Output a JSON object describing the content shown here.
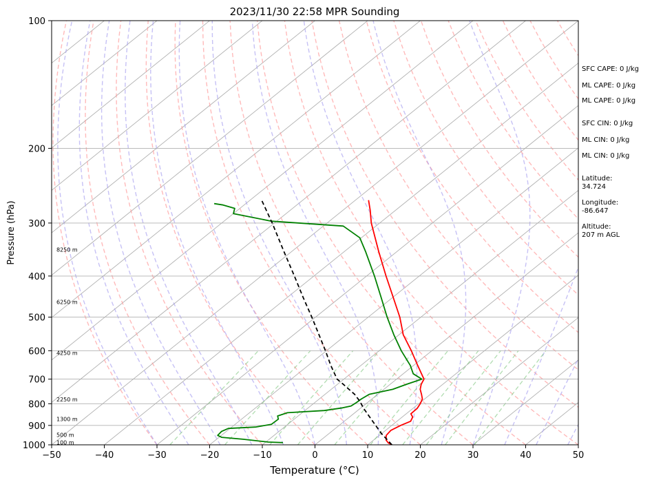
{
  "chart_data": {
    "type": "line",
    "title": "2023/11/30 22:58 MPR Sounding",
    "xlabel": "Temperature (°C)",
    "ylabel": "Pressure (hPa)",
    "x_scale": "linear",
    "y_scale": "log (inverted)",
    "xlim": [
      -50,
      50
    ],
    "ylim": [
      1000,
      100
    ],
    "x_ticks": [
      "−50",
      "−40",
      "−30",
      "−20",
      "−10",
      "0",
      "10",
      "20",
      "30",
      "40",
      "50"
    ],
    "x_tick_values": [
      -50,
      -40,
      -30,
      -20,
      -10,
      0,
      10,
      20,
      30,
      40,
      50
    ],
    "y_ticks": [
      "100",
      "200",
      "300",
      "400",
      "500",
      "600",
      "700",
      "800",
      "900",
      "1000"
    ],
    "y_tick_values": [
      100,
      200,
      300,
      400,
      500,
      600,
      700,
      800,
      900,
      1000
    ],
    "grid": true,
    "height_labels": [
      {
        "label": "100 m",
        "p": 991
      },
      {
        "label": "500 m",
        "p": 950
      },
      {
        "label": "1300 m",
        "p": 872
      },
      {
        "label": "2250 m",
        "p": 784
      },
      {
        "label": "4250 m",
        "p": 609
      },
      {
        "label": "6250 m",
        "p": 462
      },
      {
        "label": "8250 m",
        "p": 348
      }
    ],
    "series": [
      {
        "color": "#ff0000",
        "points": [
          {
            "p": 1000,
            "t": 14.6
          },
          {
            "p": 990,
            "t": 13.5
          },
          {
            "p": 975,
            "t": 12.4
          },
          {
            "p": 950,
            "t": 11.3
          },
          {
            "p": 925,
            "t": 11.0
          },
          {
            "p": 900,
            "t": 11.7
          },
          {
            "p": 880,
            "t": 12.6
          },
          {
            "p": 860,
            "t": 12.0
          },
          {
            "p": 845,
            "t": 10.9
          },
          {
            "p": 820,
            "t": 10.8
          },
          {
            "p": 800,
            "t": 10.3
          },
          {
            "p": 780,
            "t": 9.6
          },
          {
            "p": 760,
            "t": 8.3
          },
          {
            "p": 740,
            "t": 6.9
          },
          {
            "p": 720,
            "t": 5.9
          },
          {
            "p": 700,
            "t": 5.2
          },
          {
            "p": 650,
            "t": 0.8
          },
          {
            "p": 600,
            "t": -3.9
          },
          {
            "p": 550,
            "t": -9.2
          },
          {
            "p": 500,
            "t": -14.0
          },
          {
            "p": 450,
            "t": -19.8
          },
          {
            "p": 400,
            "t": -26.3
          },
          {
            "p": 350,
            "t": -33.5
          },
          {
            "p": 300,
            "t": -41.6
          },
          {
            "p": 280,
            "t": -44.8
          },
          {
            "p": 265,
            "t": -47.5
          }
        ]
      },
      {
        "color": "#008000",
        "points": [
          {
            "p": 988,
            "t": -6.6
          },
          {
            "p": 985,
            "t": -9.5
          },
          {
            "p": 970,
            "t": -15.0
          },
          {
            "p": 960,
            "t": -19.5
          },
          {
            "p": 950,
            "t": -20.7
          },
          {
            "p": 930,
            "t": -20.9
          },
          {
            "p": 915,
            "t": -20.3
          },
          {
            "p": 908,
            "t": -15.5
          },
          {
            "p": 895,
            "t": -13.1
          },
          {
            "p": 870,
            "t": -13.0
          },
          {
            "p": 855,
            "t": -13.9
          },
          {
            "p": 840,
            "t": -12.8
          },
          {
            "p": 830,
            "t": -6.3
          },
          {
            "p": 818,
            "t": -3.5
          },
          {
            "p": 810,
            "t": -2.3
          },
          {
            "p": 795,
            "t": -2.1
          },
          {
            "p": 780,
            "t": -2.0
          },
          {
            "p": 760,
            "t": -1.6
          },
          {
            "p": 740,
            "t": 1.7
          },
          {
            "p": 720,
            "t": 3.1
          },
          {
            "p": 700,
            "t": 4.8
          },
          {
            "p": 680,
            "t": 1.9
          },
          {
            "p": 650,
            "t": -0.6
          },
          {
            "p": 600,
            "t": -5.8
          },
          {
            "p": 550,
            "t": -11.0
          },
          {
            "p": 500,
            "t": -16.4
          },
          {
            "p": 450,
            "t": -22.1
          },
          {
            "p": 400,
            "t": -28.5
          },
          {
            "p": 350,
            "t": -36.0
          },
          {
            "p": 325,
            "t": -40.3
          },
          {
            "p": 305,
            "t": -46.2
          },
          {
            "p": 297,
            "t": -61.0
          },
          {
            "p": 285,
            "t": -70.0
          },
          {
            "p": 277,
            "t": -71.0
          },
          {
            "p": 272,
            "t": -74.0
          },
          {
            "p": 270,
            "t": -76.0
          }
        ]
      },
      {
        "color": "#000000",
        "style": "dashed",
        "points": [
          {
            "p": 1000,
            "t": 14.6
          },
          {
            "p": 940,
            "t": 9.9
          },
          {
            "p": 880,
            "t": 5.4
          },
          {
            "p": 820,
            "t": 0.6
          },
          {
            "p": 790,
            "t": -1.7
          },
          {
            "p": 760,
            "t": -4.4
          },
          {
            "p": 720,
            "t": -8.9
          },
          {
            "p": 700,
            "t": -11.3
          },
          {
            "p": 650,
            "t": -15.7
          },
          {
            "p": 600,
            "t": -20.2
          },
          {
            "p": 550,
            "t": -25.2
          },
          {
            "p": 500,
            "t": -30.7
          },
          {
            "p": 450,
            "t": -36.9
          },
          {
            "p": 400,
            "t": -43.7
          },
          {
            "p": 350,
            "t": -51.5
          },
          {
            "p": 300,
            "t": -60.4
          },
          {
            "p": 265,
            "t": -67.8
          }
        ]
      }
    ]
  },
  "side_panel": [
    "SFC CAPE: 0 J/kg",
    "ML CAPE: 0 J/kg",
    "ML CAPE: 0 J/kg",
    "SFC CIN: 0 J/kg",
    "ML CIN: 0 J/kg",
    "ML CIN: 0 J/kg",
    "Latitude:",
    "34.724",
    "Longitude:",
    "-86.647",
    "Altitude:",
    "207 m AGL"
  ]
}
